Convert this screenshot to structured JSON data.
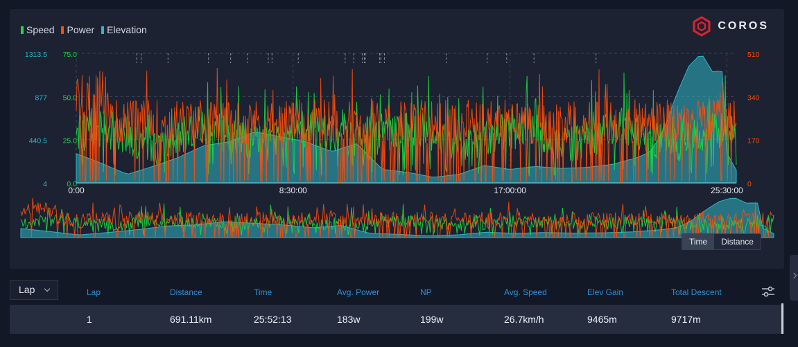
{
  "legend": [
    {
      "label": "Speed",
      "color": "#1bdc3f"
    },
    {
      "label": "Power",
      "color": "#ff4d0b"
    },
    {
      "label": "Elevation",
      "color": "#2fb6c6"
    }
  ],
  "logo": {
    "text": "COROS",
    "icon": "coros-hexagon-logo",
    "color": "#e0222d"
  },
  "chart": {
    "elevation_ticks": [
      "1313.5",
      "877",
      "440.5",
      "4"
    ],
    "speed_ticks": [
      "75.0",
      "50.0",
      "25.0",
      "0.0"
    ],
    "power_ticks": [
      "510",
      "340",
      "170",
      "0"
    ],
    "time_ticks": [
      "0:00",
      "8:30:00",
      "17:00:00",
      "25:30:00"
    ]
  },
  "chart_data": {
    "type": "line",
    "x_axis": {
      "ticks": [
        "0:00",
        "8:30:00",
        "17:00:00",
        "25:30:00"
      ]
    },
    "series": [
      {
        "name": "Speed",
        "axis": "left-inner",
        "ylim": [
          0,
          75
        ],
        "color": "#1bdc3f",
        "approx_mean": 26.7
      },
      {
        "name": "Power",
        "axis": "right",
        "ylim": [
          0,
          510
        ],
        "color": "#ff4d0b",
        "approx_mean": 183
      },
      {
        "name": "Elevation",
        "axis": "left-outer",
        "ylim": [
          4,
          1313.5
        ],
        "color": "#2fb6c6"
      }
    ],
    "elevation_profile": {
      "x_hours": [
        0,
        1,
        2,
        3,
        4,
        5,
        6,
        7,
        8,
        9,
        10,
        11,
        12,
        13,
        14,
        15,
        16,
        17,
        18,
        19,
        20,
        21,
        22,
        22.5,
        23,
        23.5,
        24,
        24.5,
        25,
        25.3,
        25.5,
        25.9
      ],
      "y": [
        300,
        200,
        90,
        170,
        260,
        380,
        420,
        520,
        470,
        420,
        320,
        400,
        140,
        110,
        60,
        90,
        180,
        140,
        170,
        150,
        160,
        190,
        260,
        320,
        520,
        880,
        1180,
        1313,
        1100,
        1180,
        300,
        120
      ]
    },
    "grid": true,
    "legend": "top-left"
  },
  "toggle": {
    "time": "Time",
    "distance": "Distance",
    "active": "Time"
  },
  "lap_select": {
    "value": "Lap"
  },
  "table": {
    "headers": [
      "Lap",
      "Distance",
      "Time",
      "Avg. Power",
      "NP",
      "Avg. Speed",
      "Elev Gain",
      "Total Descent"
    ],
    "rows": [
      [
        "1",
        "691.11km",
        "25:52:13",
        "183w",
        "199w",
        "26.7km/h",
        "9465m",
        "9717m"
      ]
    ]
  }
}
